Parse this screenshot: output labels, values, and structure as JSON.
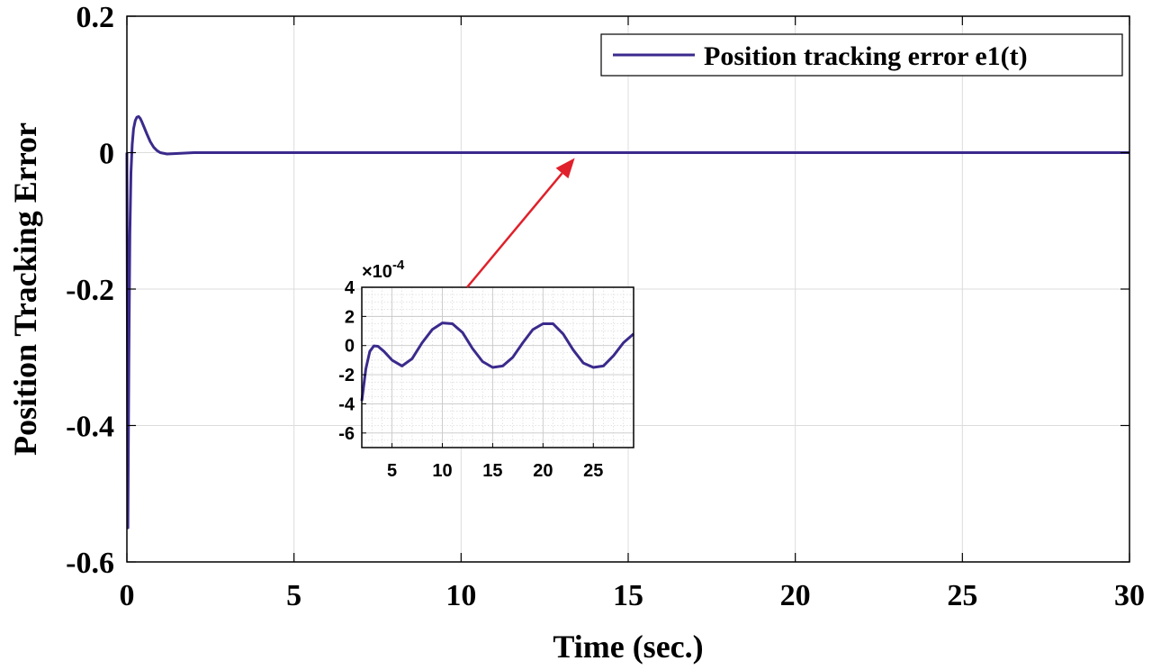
{
  "colors": {
    "series": "#3b2a8c",
    "arrow": "#e0202a",
    "grid_main": "#dcdcdc",
    "grid_inset": "#c8c8c8",
    "axis": "#000000"
  },
  "chart_data": [
    {
      "type": "line",
      "title": "",
      "xlabel": "Time (sec.)",
      "ylabel": "Position Tracking Error",
      "xlim": [
        0,
        30
      ],
      "ylim": [
        -0.6,
        0.2
      ],
      "xticks": [
        0,
        5,
        10,
        15,
        20,
        25,
        30
      ],
      "yticks": [
        0.2,
        0,
        -0.2,
        -0.4,
        -0.6
      ],
      "xtick_labels": [
        "0",
        "5",
        "10",
        "15",
        "20",
        "25",
        "30"
      ],
      "ytick_labels": [
        "0.2",
        "0",
        "-0.2",
        "-0.4",
        "-0.6"
      ],
      "grid": true,
      "legend": {
        "placement": "top-right",
        "entries": [
          "Position tracking error e1(t)"
        ]
      },
      "series": [
        {
          "name": "Position tracking error e1(t)",
          "x": [
            0,
            0.03,
            0.06,
            0.09,
            0.12,
            0.16,
            0.2,
            0.25,
            0.3,
            0.35,
            0.4,
            0.45,
            0.5,
            0.6,
            0.7,
            0.8,
            0.9,
            1.0,
            1.2,
            1.4,
            1.6,
            2.0,
            5,
            10,
            15,
            20,
            25,
            30
          ],
          "y": [
            0.0,
            -0.55,
            -0.3,
            -0.12,
            -0.03,
            0.012,
            0.035,
            0.047,
            0.052,
            0.053,
            0.05,
            0.045,
            0.039,
            0.027,
            0.016,
            0.008,
            0.003,
            0.0,
            -0.002,
            -0.0015,
            -0.001,
            0,
            0,
            0,
            0,
            0,
            0,
            0
          ]
        }
      ],
      "annotations": [
        {
          "type": "arrow",
          "from": "inset",
          "to": {
            "x": 13.4,
            "y": 0
          }
        }
      ]
    },
    {
      "type": "line",
      "title": "",
      "inset": true,
      "xlabel": "",
      "ylabel": "",
      "exponent_label": "×10",
      "exponent_power": "-4",
      "xlim": [
        2,
        29
      ],
      "ylim": [
        -7,
        4
      ],
      "xticks": [
        5,
        10,
        15,
        20,
        25
      ],
      "yticks": [
        4,
        2,
        0,
        -2,
        -4,
        -6
      ],
      "xtick_labels": [
        "5",
        "10",
        "15",
        "20",
        "25"
      ],
      "ytick_labels": [
        "4",
        "2",
        "0",
        "-2",
        "-4",
        "-6"
      ],
      "grid": true,
      "series": [
        {
          "x": [
            2.0,
            2.4,
            2.8,
            3.2,
            3.6,
            4.2,
            5.0,
            6.0,
            7.0,
            8.0,
            9.0,
            10.0,
            11.0,
            12.0,
            13.0,
            14.0,
            15.0,
            16.0,
            17.0,
            18.0,
            19.0,
            20.0,
            21.0,
            22.0,
            23.0,
            24.0,
            25.0,
            26.0,
            27.0,
            28.0,
            29.0
          ],
          "y": [
            -3.8,
            -1.6,
            -0.4,
            -0.02,
            -0.05,
            -0.4,
            -1.0,
            -1.4,
            -0.9,
            0.2,
            1.1,
            1.55,
            1.5,
            0.9,
            -0.2,
            -1.1,
            -1.5,
            -1.4,
            -0.8,
            0.2,
            1.1,
            1.5,
            1.5,
            0.8,
            -0.3,
            -1.2,
            -1.5,
            -1.4,
            -0.7,
            0.2,
            0.8
          ]
        }
      ]
    }
  ]
}
